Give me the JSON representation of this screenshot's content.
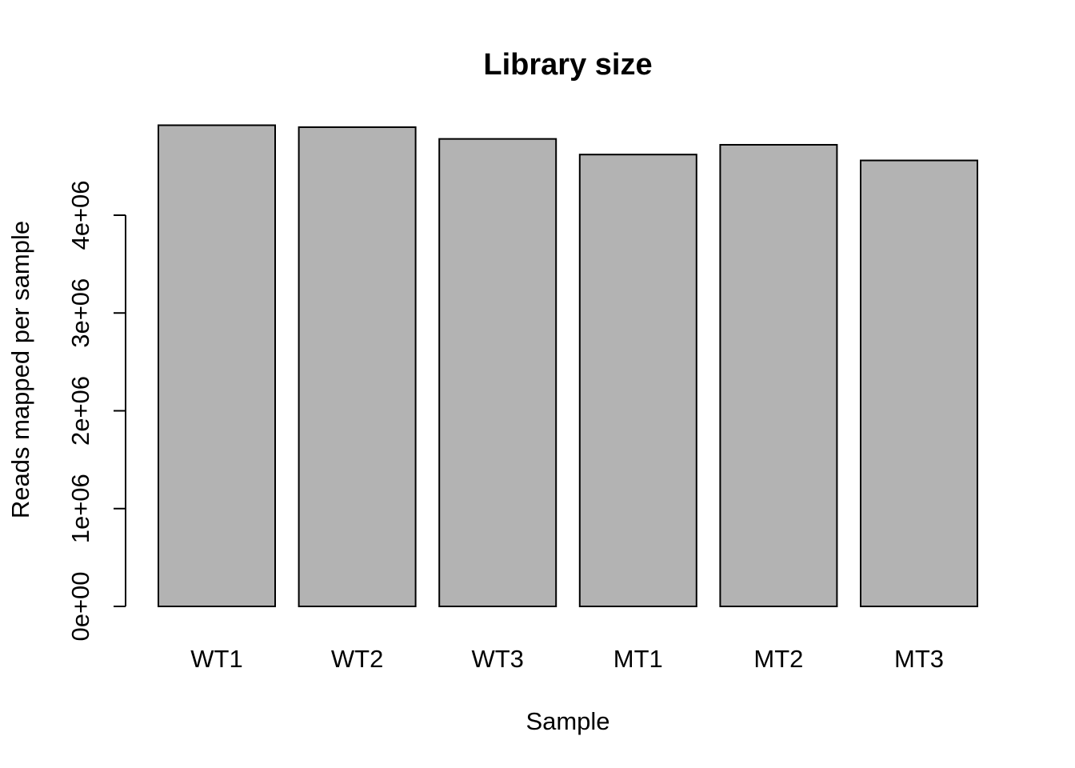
{
  "chart_data": {
    "type": "bar",
    "title": "Library size",
    "xlabel": "Sample",
    "ylabel": "Reads mapped per sample",
    "categories": [
      "WT1",
      "WT2",
      "WT3",
      "MT1",
      "MT2",
      "MT3"
    ],
    "values": [
      4920000,
      4900000,
      4780000,
      4620000,
      4720000,
      4560000
    ],
    "ylim": [
      0,
      4920000
    ],
    "yticks": [
      0,
      1000000,
      2000000,
      3000000,
      4000000
    ],
    "ytick_labels": [
      "0e+00",
      "1e+06",
      "2e+06",
      "3e+06",
      "4e+06"
    ],
    "bar_color": "#b3b3b3",
    "grid": false,
    "legend": "none"
  }
}
